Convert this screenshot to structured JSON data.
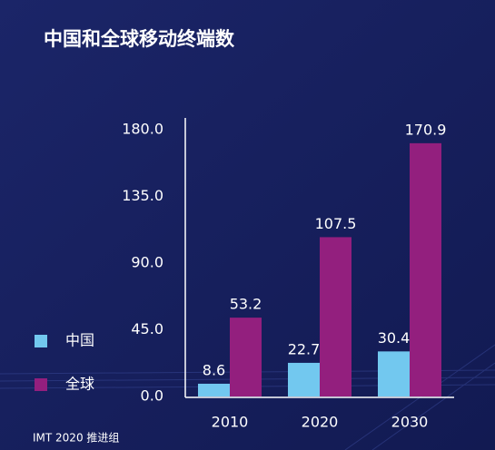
{
  "chart_data": {
    "type": "bar",
    "title": "中国和全球移动终端数",
    "categories": [
      "2010",
      "2020",
      "2030"
    ],
    "series": [
      {
        "name": "中国",
        "color": "#72c8ef",
        "values": [
          8.6,
          22.7,
          30.4
        ]
      },
      {
        "name": "全球",
        "color": "#931f7e",
        "values": [
          53.2,
          107.5,
          170.9
        ]
      }
    ],
    "ylim": [
      0,
      180
    ],
    "yticks": [
      {
        "value": 0,
        "label": "0.0"
      },
      {
        "value": 45,
        "label": "45.0"
      },
      {
        "value": 90,
        "label": "90.0"
      },
      {
        "value": 135,
        "label": "135.0"
      },
      {
        "value": 180,
        "label": "180.0"
      }
    ],
    "legend": "left",
    "source": "IMT 2020 推进组"
  }
}
